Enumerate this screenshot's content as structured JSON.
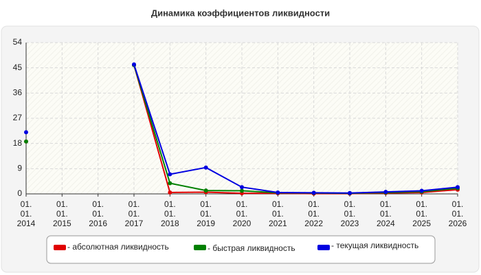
{
  "chart_data": {
    "type": "line",
    "title": "Динамика коэффициентов ликвидности",
    "categories": [
      "01. 01. 2014",
      "01. 01. 2015",
      "01. 01. 2016",
      "01. 01. 2017",
      "01. 01. 2018",
      "01. 01. 2019",
      "01. 01. 2020",
      "01. 01. 2021",
      "01. 01. 2022",
      "01. 01. 2023",
      "01. 01. 2024",
      "01. 01. 2025",
      "01. 01. 2026"
    ],
    "series": [
      {
        "name": "- абсолютная ликвидность",
        "color": "#e00000",
        "values": [
          18.7,
          null,
          null,
          46,
          0.5,
          0.6,
          0.2,
          0.2,
          0.1,
          0.1,
          0.3,
          0.5,
          1.5
        ]
      },
      {
        "name": "- быстрая ликвидность",
        "color": "#008000",
        "values": [
          18.7,
          null,
          null,
          46,
          3.8,
          1.2,
          1.1,
          0.4,
          0.3,
          0.2,
          0.5,
          0.8,
          2.0
        ]
      },
      {
        "name": "- текущая ликвидность",
        "color": "#0000e0",
        "values": [
          22,
          null,
          null,
          46.2,
          7,
          9.4,
          2.4,
          0.5,
          0.4,
          0.3,
          0.7,
          1.1,
          2.4
        ]
      }
    ],
    "ylim": [
      0,
      54
    ],
    "yticks": [
      0,
      9,
      18,
      27,
      36,
      45,
      54
    ],
    "grid": true,
    "legend": "bottom"
  }
}
